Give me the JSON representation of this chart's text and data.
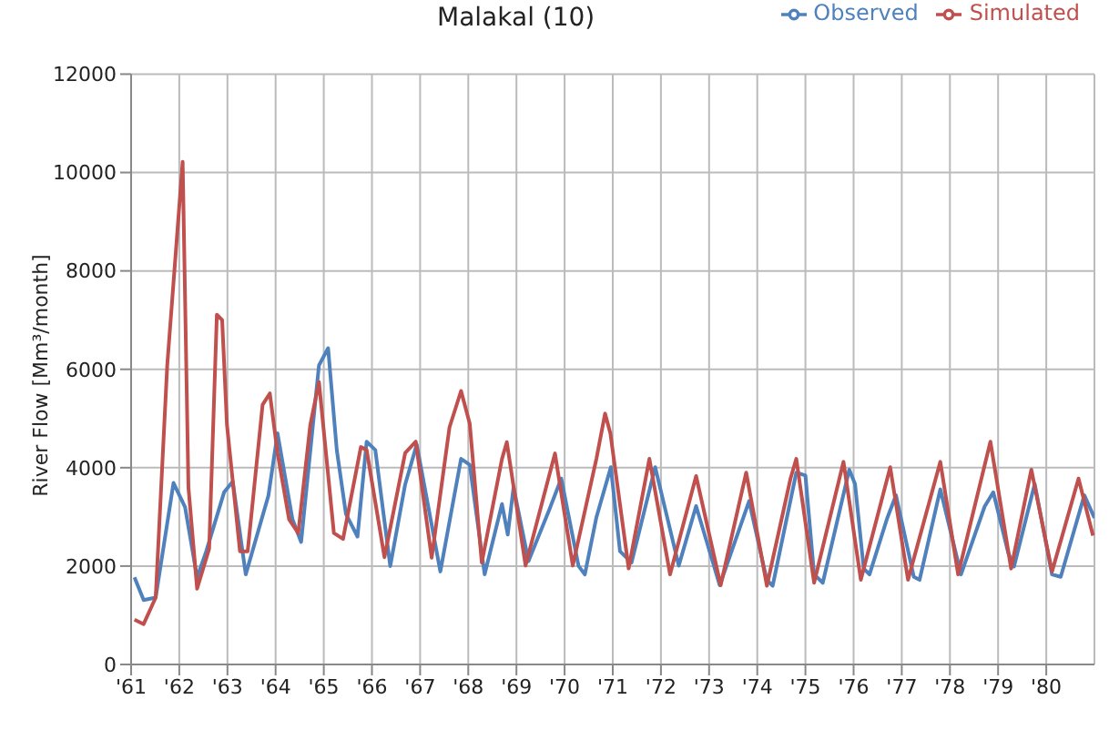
{
  "chart_data": {
    "type": "line",
    "title": "Malakal (10)",
    "ylabel": "River Flow  [Mm³/month]",
    "xlim": [
      1961,
      1981
    ],
    "xticks": [
      {
        "value": 1961,
        "label": "'61"
      },
      {
        "value": 1962,
        "label": "'62"
      },
      {
        "value": 1963,
        "label": "'63"
      },
      {
        "value": 1964,
        "label": "'64"
      },
      {
        "value": 1965,
        "label": "'65"
      },
      {
        "value": 1966,
        "label": "'66"
      },
      {
        "value": 1967,
        "label": "'67"
      },
      {
        "value": 1968,
        "label": "'68"
      },
      {
        "value": 1969,
        "label": "'69"
      },
      {
        "value": 1970,
        "label": "'70"
      },
      {
        "value": 1971,
        "label": "'71"
      },
      {
        "value": 1972,
        "label": "'72"
      },
      {
        "value": 1973,
        "label": "'73"
      },
      {
        "value": 1974,
        "label": "'74"
      },
      {
        "value": 1975,
        "label": "'75"
      },
      {
        "value": 1976,
        "label": "'76"
      },
      {
        "value": 1977,
        "label": "'77"
      },
      {
        "value": 1978,
        "label": "'78"
      },
      {
        "value": 1979,
        "label": "'79"
      },
      {
        "value": 1980,
        "label": "'80"
      }
    ],
    "ylim": [
      0,
      12000
    ],
    "yticks": [
      0,
      2000,
      4000,
      6000,
      8000,
      10000,
      12000
    ],
    "grid": true,
    "legend": "top right",
    "marker": "none",
    "line_style": "solid",
    "series": [
      {
        "name": "Observed",
        "color": "#4f81bd",
        "x": [
          1961.07,
          1961.26,
          1961.51,
          1961.88,
          1962.12,
          1962.37,
          1962.56,
          1962.93,
          1963.11,
          1963.38,
          1963.85,
          1964.04,
          1964.35,
          1964.53,
          1964.9,
          1965.09,
          1965.27,
          1965.46,
          1965.7,
          1965.89,
          1966.07,
          1966.38,
          1966.69,
          1966.93,
          1967.42,
          1967.85,
          1968.03,
          1968.34,
          1968.7,
          1968.82,
          1968.94,
          1969.25,
          1969.68,
          1969.93,
          1970.29,
          1970.42,
          1970.66,
          1970.96,
          1971.15,
          1971.39,
          1971.88,
          1972.37,
          1972.73,
          1973.22,
          1973.83,
          1974.2,
          1974.32,
          1974.81,
          1975.0,
          1975.18,
          1975.36,
          1975.91,
          1976.03,
          1976.21,
          1976.33,
          1976.7,
          1976.88,
          1977.25,
          1977.37,
          1977.8,
          1978.23,
          1978.72,
          1978.9,
          1979.21,
          1979.33,
          1979.76,
          1980.12,
          1980.3,
          1980.79,
          1981.0
        ],
        "values": [
          1770,
          1310,
          1360,
          3690,
          3200,
          1770,
          2300,
          3500,
          3720,
          1830,
          3430,
          4700,
          2950,
          2490,
          6080,
          6430,
          4360,
          3060,
          2600,
          4530,
          4360,
          2000,
          3660,
          4470,
          1890,
          4180,
          4060,
          1830,
          3260,
          2640,
          3600,
          2100,
          3140,
          3780,
          2000,
          1830,
          2990,
          4010,
          2300,
          2070,
          4010,
          2010,
          3220,
          1610,
          3320,
          1710,
          1600,
          3900,
          3840,
          1830,
          1660,
          3960,
          3670,
          1950,
          1830,
          2980,
          3440,
          1780,
          1720,
          3560,
          1830,
          3210,
          3500,
          2270,
          1990,
          3670,
          1830,
          1780,
          3440,
          2980
        ]
      },
      {
        "name": "Simulated",
        "color": "#c0504d",
        "x": [
          1961.07,
          1961.26,
          1961.51,
          1961.75,
          1962.07,
          1962.19,
          1962.37,
          1962.62,
          1962.78,
          1962.89,
          1962.99,
          1963.26,
          1963.42,
          1963.73,
          1963.88,
          1964.04,
          1964.28,
          1964.47,
          1964.72,
          1964.9,
          1965.21,
          1965.4,
          1965.77,
          1965.89,
          1966.26,
          1966.69,
          1966.91,
          1967.24,
          1967.61,
          1967.85,
          1968.03,
          1968.28,
          1968.7,
          1968.8,
          1969.19,
          1969.8,
          1970.17,
          1970.66,
          1970.84,
          1970.95,
          1971.33,
          1971.76,
          1972.19,
          1972.73,
          1973.24,
          1973.77,
          1974.2,
          1974.69,
          1974.81,
          1975.18,
          1975.79,
          1976.15,
          1976.76,
          1977.13,
          1977.8,
          1978.17,
          1978.84,
          1979.27,
          1979.69,
          1980.12,
          1980.67,
          1980.97
        ],
        "values": [
          910,
          820,
          1360,
          6080,
          10220,
          3600,
          1540,
          2350,
          7110,
          7000,
          4870,
          2300,
          2300,
          5280,
          5510,
          4300,
          2950,
          2670,
          4870,
          5740,
          2670,
          2550,
          4420,
          4360,
          2180,
          4300,
          4530,
          2170,
          4820,
          5560,
          4900,
          2070,
          4180,
          4520,
          2010,
          4290,
          2010,
          4180,
          5100,
          4700,
          1950,
          4180,
          1830,
          3830,
          1610,
          3900,
          1600,
          3780,
          4180,
          1660,
          4120,
          1720,
          4010,
          1720,
          4120,
          1830,
          4530,
          1950,
          3960,
          1890,
          3780,
          2620
        ]
      }
    ]
  }
}
